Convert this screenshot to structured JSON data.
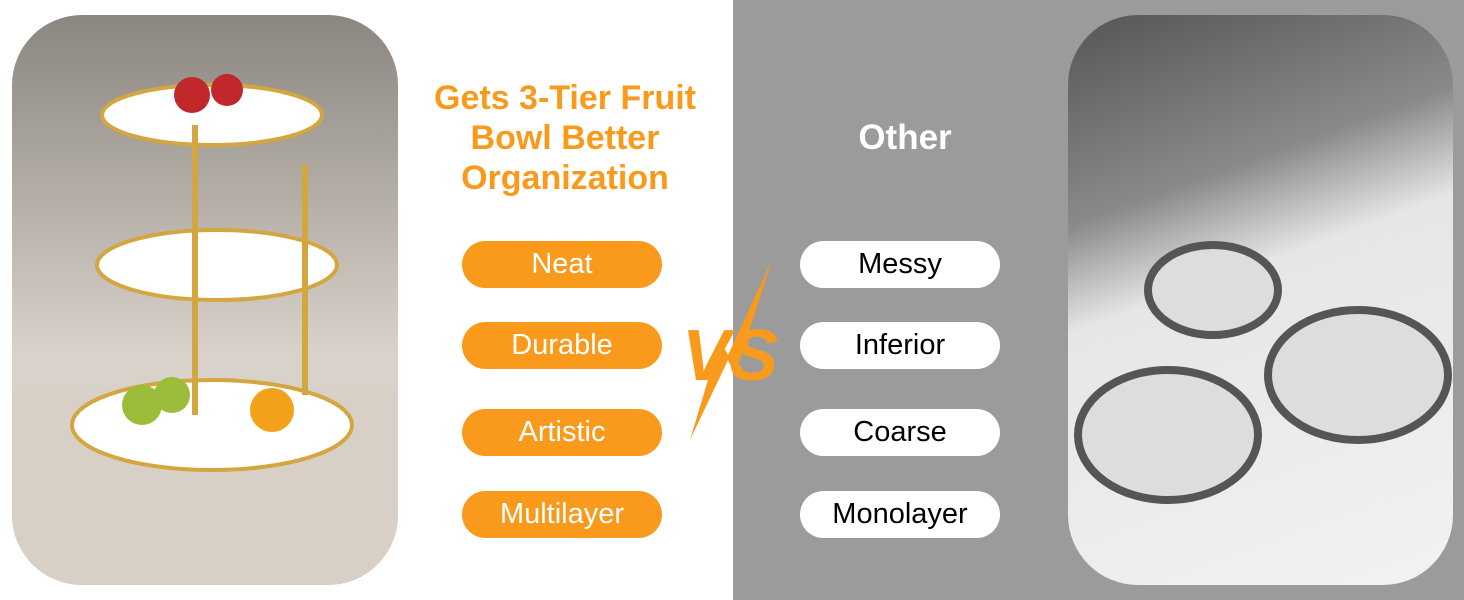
{
  "left": {
    "title": "Gets 3-Tier Fruit Bowl Better Organization",
    "features": [
      "Neat",
      "Durable",
      "Artistic",
      "Multilayer"
    ]
  },
  "right": {
    "title": "Other",
    "features": [
      "Messy",
      "Inferior",
      "Coarse",
      "Monolayer"
    ]
  },
  "vs_label": "VS",
  "colors": {
    "accent": "#f99a1c",
    "panel_gray": "#9b9b9b"
  }
}
